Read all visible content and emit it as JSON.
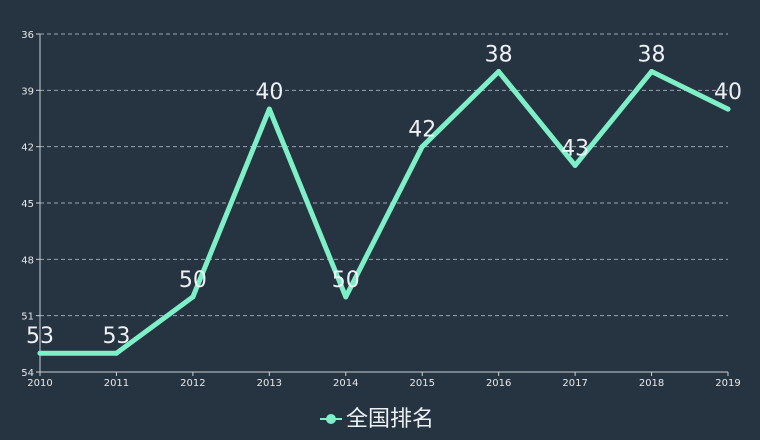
{
  "colors": {
    "background": "#263340",
    "series": "#7ef0c8",
    "grid": "#9aa5ae",
    "axis": "#c9cfd4",
    "text": "#eef1f3"
  },
  "chart_data": {
    "type": "line",
    "title": "",
    "xlabel": "",
    "ylabel": "",
    "y_inverted": true,
    "ylim": [
      36,
      54
    ],
    "y_ticks": [
      36,
      39,
      42,
      45,
      48,
      51,
      54
    ],
    "grid": true,
    "legend_position": "bottom-center",
    "categories": [
      "2010",
      "2011",
      "2012",
      "2013",
      "2014",
      "2015",
      "2016",
      "2017",
      "2018",
      "2019"
    ],
    "series": [
      {
        "name": "全国排名",
        "values": [
          53,
          53,
          50,
          40,
          50,
          42,
          38,
          43,
          38,
          40
        ]
      }
    ]
  }
}
